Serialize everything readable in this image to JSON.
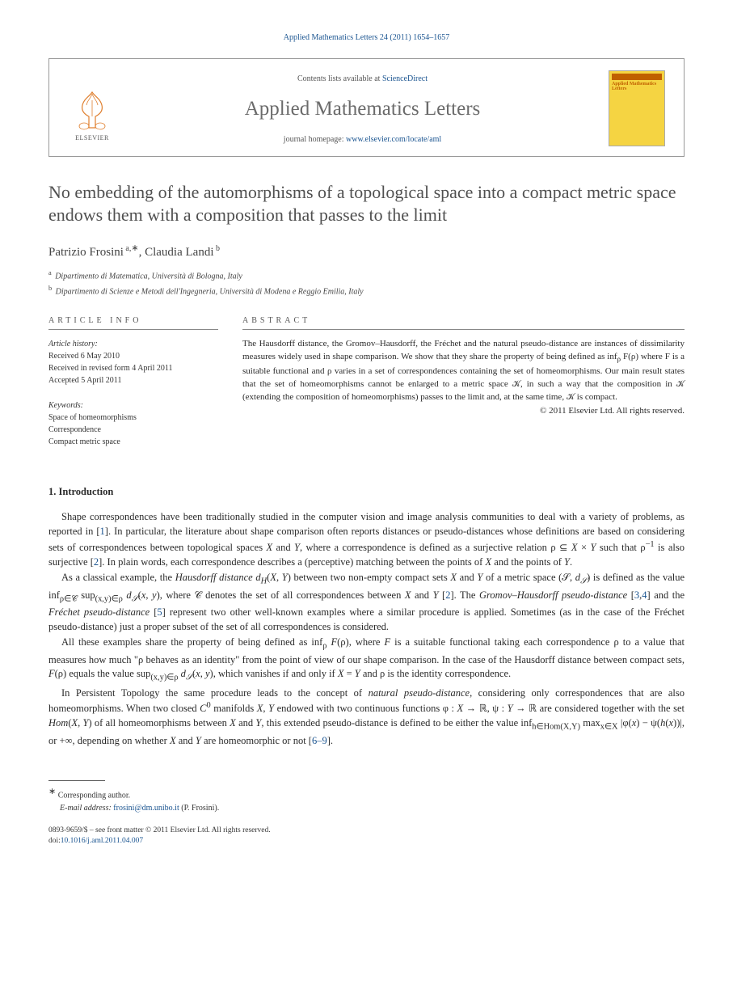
{
  "colors": {
    "link": "#1a5490",
    "body_text": "#2a2a2a",
    "title_gray": "#505050",
    "journal_gray": "#6b6b6b",
    "background": "#ffffff",
    "cover_bg": "#f5d442",
    "cover_accent": "#c06000",
    "rule": "#888888"
  },
  "typography": {
    "body_fontsize_pt": 9.5,
    "title_fontsize_pt": 17,
    "journal_name_fontsize_pt": 19,
    "abstract_fontsize_pt": 8.5,
    "footnote_fontsize_pt": 7.5,
    "font_family": "Georgia / Times-like serif"
  },
  "citation": "Applied Mathematics Letters 24 (2011) 1654–1657",
  "header": {
    "contents_prefix": "Contents lists available at ",
    "contents_link": "ScienceDirect",
    "journal_name": "Applied Mathematics Letters",
    "homepage_prefix": "journal homepage: ",
    "homepage_link": "www.elsevier.com/locate/aml",
    "publisher_label": "ELSEVIER",
    "cover_title": "Applied Mathematics Letters"
  },
  "title": "No embedding of the automorphisms of a topological space into a compact metric space endows them with a composition that passes to the limit",
  "authors_html": "Patrizio Frosini<sup> a,</sup><span class='star'>∗</span>, Claudia Landi<sup> b</sup>",
  "affiliations": [
    {
      "marker": "a",
      "text": "Dipartimento di Matematica, Università di Bologna, Italy"
    },
    {
      "marker": "b",
      "text": "Dipartimento di Scienze e Metodi dell'Ingegneria, Università di Modena e Reggio Emilia, Italy"
    }
  ],
  "info": {
    "label": "ARTICLE INFO",
    "history_label": "Article history:",
    "history": [
      "Received 6 May 2010",
      "Received in revised form 4 April 2011",
      "Accepted 5 April 2011"
    ],
    "keywords_label": "Keywords:",
    "keywords": [
      "Space of homeomorphisms",
      "Correspondence",
      "Compact metric space"
    ]
  },
  "abstract": {
    "label": "ABSTRACT",
    "text": "The Hausdorff distance, the Gromov–Hausdorff, the Fréchet and the natural pseudo-distance are instances of dissimilarity measures widely used in shape comparison. We show that they share the property of being defined as inf<sub>ρ</sub> F(ρ) where F is a suitable functional and ρ varies in a set of correspondences containing the set of homeomorphisms. Our main result states that the set of homeomorphisms cannot be enlarged to a metric space 𝒦, in such a way that the composition in 𝒦 (extending the composition of homeomorphisms) passes to the limit and, at the same time, 𝒦 is compact.",
    "copyright": "© 2011 Elsevier Ltd. All rights reserved."
  },
  "section1": {
    "heading": "1. Introduction",
    "p1": "Shape correspondences have been traditionally studied in the computer vision and image analysis communities to deal with a variety of problems, as reported in [<a class='ref'>1</a>]. In particular, the literature about shape comparison often reports distances or pseudo-distances whose definitions are based on considering sets of correspondences between topological spaces <span class='it'>X</span> and <span class='it'>Y</span>, where a correspondence is defined as a surjective relation ρ ⊆ <span class='it'>X</span> × <span class='it'>Y</span> such that ρ<sup>−1</sup> is also surjective [<a class='ref'>2</a>]. In plain words, each correspondence describes a (perceptive) matching between the points of <span class='it'>X</span> and the points of <span class='it'>Y</span>.",
    "p2": "As a classical example, the <span class='it'>Hausdorff distance d<sub>H</sub></span>(<span class='it'>X</span>, <span class='it'>Y</span>) between two non-empty compact sets <span class='it'>X</span> and <span class='it'>Y</span> of a metric space (𝒮, <span class='it'>d<sub>𝒮</sub></span>) is defined as the value inf<sub>ρ∈𝒞</sub> sup<sub>(x,y)∈ρ</sub> <span class='it'>d<sub>𝒮</sub></span>(<span class='it'>x</span>, <span class='it'>y</span>), where 𝒞 denotes the set of all correspondences between <span class='it'>X</span> and <span class='it'>Y</span> [<a class='ref'>2</a>]. The <span class='it'>Gromov–Hausdorff pseudo-distance</span> [<a class='ref'>3</a>,<a class='ref'>4</a>] and the <span class='it'>Fréchet pseudo-distance</span> [<a class='ref'>5</a>] represent two other well-known examples where a similar procedure is applied. Sometimes (as in the case of the Fréchet pseudo-distance) just a proper subset of the set of all correspondences is considered.",
    "p3": "All these examples share the property of being defined as inf<sub>ρ</sub> <span class='it'>F</span>(ρ), where <span class='it'>F</span> is a suitable functional taking each correspondence ρ to a value that measures how much \"ρ behaves as an identity\" from the point of view of our shape comparison. In the case of the Hausdorff distance between compact sets, <span class='it'>F</span>(ρ) equals the value sup<sub>(x,y)∈ρ</sub> <span class='it'>d<sub>𝒮</sub></span>(<span class='it'>x</span>, <span class='it'>y</span>), which vanishes if and only if <span class='it'>X</span> = <span class='it'>Y</span> and ρ is the identity correspondence.",
    "p4": "In Persistent Topology the same procedure leads to the concept of <span class='it'>natural pseudo-distance</span>, considering only correspondences that are also homeomorphisms. When two closed <span class='it'>C</span><sup>0</sup> manifolds <span class='it'>X</span>, <span class='it'>Y</span> endowed with two continuous functions φ : <span class='it'>X</span> → ℝ, ψ : <span class='it'>Y</span> → ℝ are considered together with the set <span class='it'>Hom</span>(<span class='it'>X</span>, <span class='it'>Y</span>) of all homeomorphisms between <span class='it'>X</span> and <span class='it'>Y</span>, this extended pseudo-distance is defined to be either the value inf<sub>h∈Hom(X,Y)</sub> max<sub>x∈X</sub> |φ(<span class='it'>x</span>) − ψ(<span class='it'>h</span>(<span class='it'>x</span>))|, or +∞, depending on whether <span class='it'>X</span> and <span class='it'>Y</span> are homeomorphic or not [<a class='ref'>6–9</a>]."
  },
  "footer": {
    "corresponding": "Corresponding author.",
    "email_label": "E-mail address:",
    "email": "frosini@dm.unibo.it",
    "email_attribution": "(P. Frosini).",
    "issn_line": "0893-9659/$ – see front matter © 2011 Elsevier Ltd. All rights reserved.",
    "doi_prefix": "doi:",
    "doi": "10.1016/j.aml.2011.04.007"
  }
}
